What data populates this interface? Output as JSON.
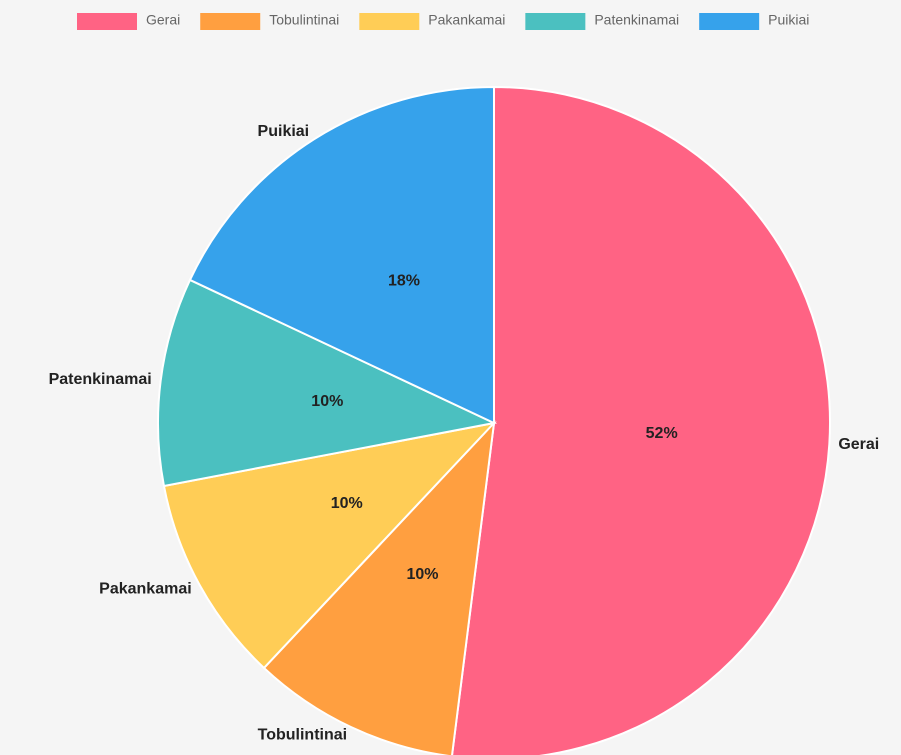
{
  "chart_data": {
    "type": "pie",
    "categories": [
      "Gerai",
      "Tobulintinai",
      "Pakankamai",
      "Patenkinamai",
      "Puikiai"
    ],
    "values": [
      52,
      10,
      10,
      10,
      18
    ],
    "value_labels": [
      "52%",
      "10%",
      "10%",
      "10%",
      "18%"
    ],
    "colors": [
      "#ff6384",
      "#ff9f40",
      "#ffcd56",
      "#4bc0c0",
      "#36a2eb"
    ],
    "legend": "top"
  }
}
